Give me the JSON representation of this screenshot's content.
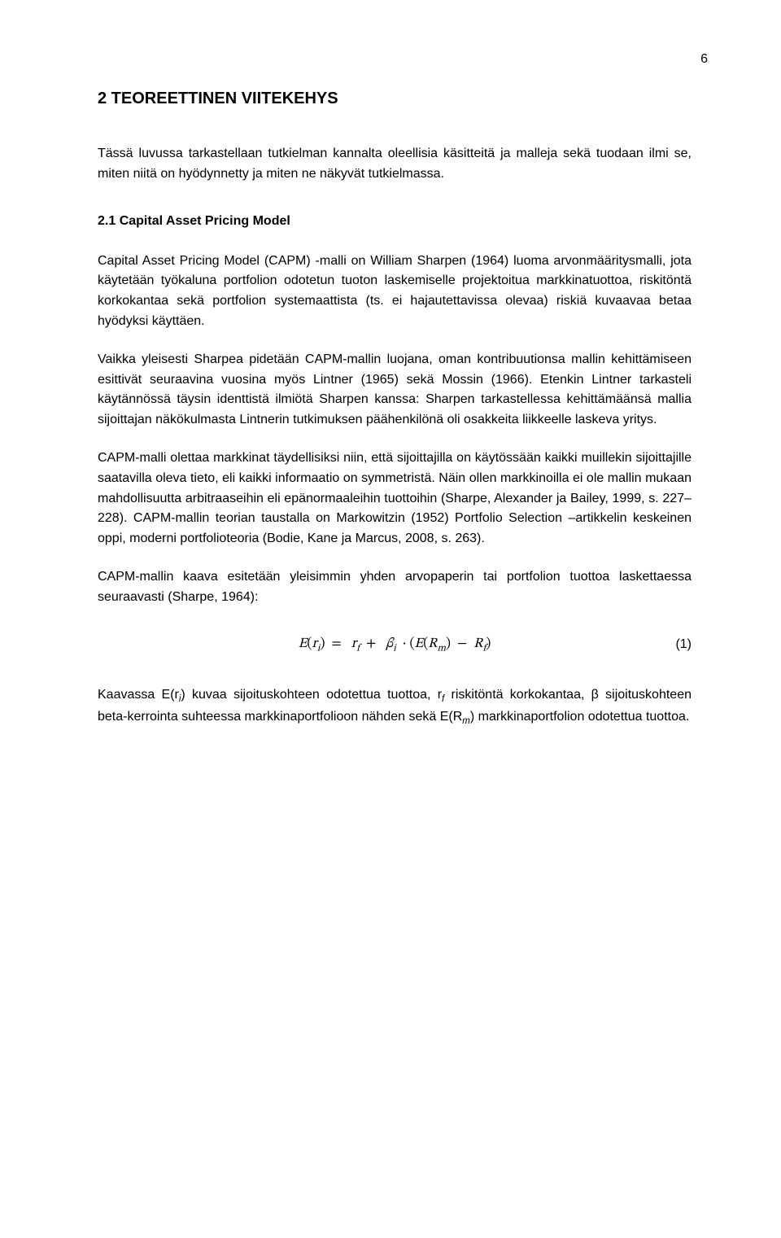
{
  "page_number": "6",
  "heading": "2 TEOREETTINEN VIITEKEHYS",
  "intro_paragraph": "Tässä luvussa tarkastellaan tutkielman kannalta oleellisia käsitteitä ja malleja sekä tuodaan ilmi se, miten niitä on hyödynnetty ja miten ne näkyvät tutkielmassa.",
  "subheading": "2.1 Capital Asset Pricing Model",
  "p1": "Capital Asset Pricing Model (CAPM) -malli on William Sharpen (1964) luoma arvonmääritysmalli, jota käytetään työkaluna portfolion odotetun tuoton laskemiselle projektoitua markkinatuottoa, riskitöntä korkokantaa sekä portfolion systemaattista (ts. ei hajautettavissa olevaa) riskiä kuvaavaa betaa hyödyksi käyttäen.",
  "p2": "Vaikka yleisesti Sharpea pidetään CAPM-mallin luojana, oman kontribuutionsa mallin kehittämiseen esittivät seuraavina vuosina myös Lintner (1965) sekä Mossin (1966). Etenkin Lintner tarkasteli käytännössä täysin identtistä ilmiötä Sharpen kanssa: Sharpen tarkastellessa kehittämäänsä mallia sijoittajan näkökulmasta Lintnerin tutkimuksen päähenkilönä oli osakkeita liikkeelle laskeva yritys.",
  "p3": "CAPM-malli olettaa markkinat täydellisiksi niin, että sijoittajilla on käytössään kaikki muillekin sijoittajille saatavilla oleva tieto, eli kaikki informaatio on symmetristä. Näin ollen markkinoilla ei ole mallin mukaan mahdollisuutta arbitraaseihin eli epänormaaleihin tuottoihin (Sharpe, Alexander ja Bailey, 1999, s. 227–228). CAPM-mallin teorian taustalla on Markowitzin (1952) Portfolio Selection –artikkelin keskeinen oppi, moderni portfolioteoria (Bodie, Kane ja Marcus, 2008, s. 263).",
  "p4": "CAPM-mallin kaava esitetään yleisimmin yhden arvopaperin tai portfolion tuottoa laskettaessa seuraavasti (Sharpe, 1964):",
  "equation_number": "(1)",
  "p5_prefix": "Kaavassa E(r",
  "p5_sub1": "i",
  "p5_mid1": ") kuvaa sijoituskohteen odotettua tuottoa, r",
  "p5_sub2": "f",
  "p5_mid2": " riskitöntä korkokantaa, β sijoituskohteen beta-kerrointa suhteessa markkinaportfolioon nähden sekä E(R",
  "p5_sub3": "m",
  "p5_mid3": ") markkinaportfolion odotettua tuottoa."
}
